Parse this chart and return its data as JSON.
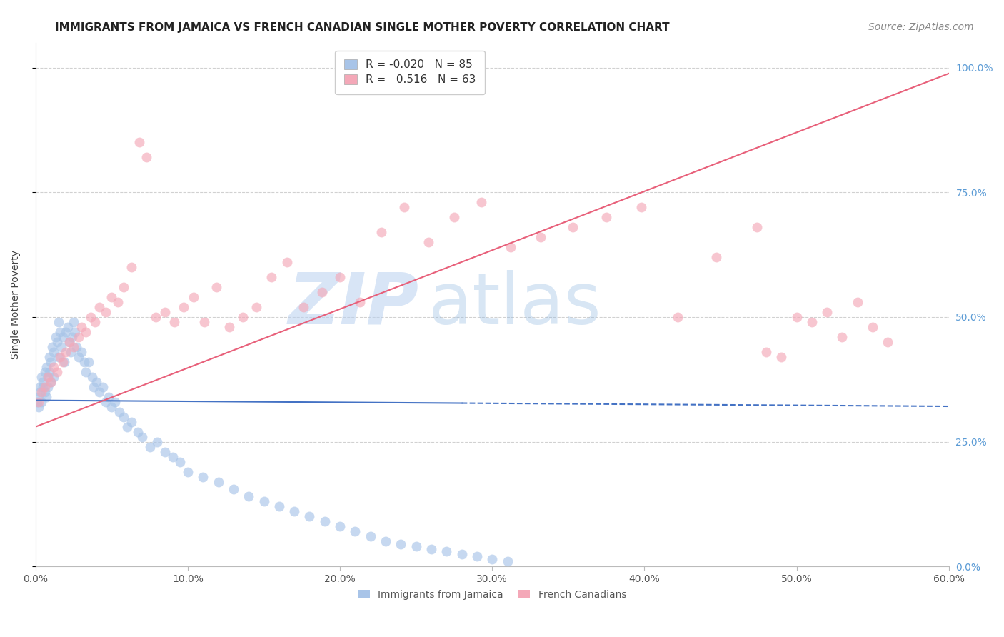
{
  "title": "IMMIGRANTS FROM JAMAICA VS FRENCH CANADIAN SINGLE MOTHER POVERTY CORRELATION CHART",
  "source": "Source: ZipAtlas.com",
  "ylabel": "Single Mother Poverty",
  "right_yticklabels": [
    "0.0%",
    "25.0%",
    "50.0%",
    "75.0%",
    "100.0%"
  ],
  "xlim": [
    0.0,
    0.6
  ],
  "ylim": [
    0.0,
    1.05
  ],
  "blue_R": -0.02,
  "blue_N": 85,
  "pink_R": 0.516,
  "pink_N": 63,
  "blue_color": "#a8c4e8",
  "pink_color": "#f4a8b8",
  "blue_line_color": "#4472c4",
  "pink_line_color": "#e8607a",
  "blue_line_solid_end": 0.28,
  "watermark_zip": "ZIP",
  "watermark_atlas": "atlas",
  "watermark_color": "#b8d0f0",
  "watermark_atlas_color": "#90b8e0",
  "legend_label_blue": "Immigrants from Jamaica",
  "legend_label_pink": "French Canadians",
  "blue_line_y_intercept": 0.333,
  "blue_line_slope": -0.02,
  "pink_line_y_intercept": 0.28,
  "pink_line_slope": 1.18,
  "blue_scatter_x": [
    0.001,
    0.002,
    0.002,
    0.003,
    0.003,
    0.004,
    0.004,
    0.005,
    0.005,
    0.006,
    0.006,
    0.007,
    0.007,
    0.008,
    0.008,
    0.009,
    0.009,
    0.01,
    0.01,
    0.011,
    0.012,
    0.012,
    0.013,
    0.014,
    0.015,
    0.015,
    0.016,
    0.017,
    0.018,
    0.019,
    0.02,
    0.021,
    0.022,
    0.023,
    0.024,
    0.025,
    0.026,
    0.027,
    0.028,
    0.03,
    0.032,
    0.033,
    0.035,
    0.037,
    0.038,
    0.04,
    0.042,
    0.044,
    0.046,
    0.048,
    0.05,
    0.052,
    0.055,
    0.058,
    0.06,
    0.063,
    0.067,
    0.07,
    0.075,
    0.08,
    0.085,
    0.09,
    0.095,
    0.1,
    0.11,
    0.12,
    0.13,
    0.14,
    0.15,
    0.16,
    0.17,
    0.18,
    0.19,
    0.2,
    0.21,
    0.22,
    0.23,
    0.24,
    0.25,
    0.26,
    0.27,
    0.28,
    0.29,
    0.3,
    0.31
  ],
  "blue_scatter_y": [
    0.33,
    0.34,
    0.32,
    0.35,
    0.36,
    0.33,
    0.38,
    0.37,
    0.36,
    0.39,
    0.35,
    0.4,
    0.34,
    0.38,
    0.36,
    0.42,
    0.39,
    0.41,
    0.37,
    0.44,
    0.43,
    0.38,
    0.46,
    0.45,
    0.49,
    0.42,
    0.47,
    0.44,
    0.46,
    0.41,
    0.47,
    0.48,
    0.45,
    0.43,
    0.46,
    0.49,
    0.47,
    0.44,
    0.42,
    0.43,
    0.41,
    0.39,
    0.41,
    0.38,
    0.36,
    0.37,
    0.35,
    0.36,
    0.33,
    0.34,
    0.32,
    0.33,
    0.31,
    0.3,
    0.28,
    0.29,
    0.27,
    0.26,
    0.24,
    0.25,
    0.23,
    0.22,
    0.21,
    0.19,
    0.18,
    0.17,
    0.155,
    0.14,
    0.13,
    0.12,
    0.11,
    0.1,
    0.09,
    0.08,
    0.07,
    0.06,
    0.05,
    0.045,
    0.04,
    0.035,
    0.03,
    0.025,
    0.02,
    0.015,
    0.01
  ],
  "pink_scatter_x": [
    0.002,
    0.004,
    0.006,
    0.008,
    0.01,
    0.012,
    0.014,
    0.016,
    0.018,
    0.02,
    0.022,
    0.025,
    0.028,
    0.03,
    0.033,
    0.036,
    0.039,
    0.042,
    0.046,
    0.05,
    0.054,
    0.058,
    0.063,
    0.068,
    0.073,
    0.079,
    0.085,
    0.091,
    0.097,
    0.104,
    0.111,
    0.119,
    0.127,
    0.136,
    0.145,
    0.155,
    0.165,
    0.176,
    0.188,
    0.2,
    0.213,
    0.227,
    0.242,
    0.258,
    0.275,
    0.293,
    0.312,
    0.332,
    0.353,
    0.375,
    0.398,
    0.422,
    0.447,
    0.474,
    0.48,
    0.49,
    0.5,
    0.51,
    0.52,
    0.53,
    0.54,
    0.55,
    0.56
  ],
  "pink_scatter_y": [
    0.33,
    0.35,
    0.36,
    0.38,
    0.37,
    0.4,
    0.39,
    0.42,
    0.41,
    0.43,
    0.45,
    0.44,
    0.46,
    0.48,
    0.47,
    0.5,
    0.49,
    0.52,
    0.51,
    0.54,
    0.53,
    0.56,
    0.6,
    0.85,
    0.82,
    0.5,
    0.51,
    0.49,
    0.52,
    0.54,
    0.49,
    0.56,
    0.48,
    0.5,
    0.52,
    0.58,
    0.61,
    0.52,
    0.55,
    0.58,
    0.53,
    0.67,
    0.72,
    0.65,
    0.7,
    0.73,
    0.64,
    0.66,
    0.68,
    0.7,
    0.72,
    0.5,
    0.62,
    0.68,
    0.43,
    0.42,
    0.5,
    0.49,
    0.51,
    0.46,
    0.53,
    0.48,
    0.45
  ],
  "title_fontsize": 11,
  "source_fontsize": 10,
  "axis_label_fontsize": 10,
  "tick_fontsize": 10,
  "legend_fontsize": 10
}
